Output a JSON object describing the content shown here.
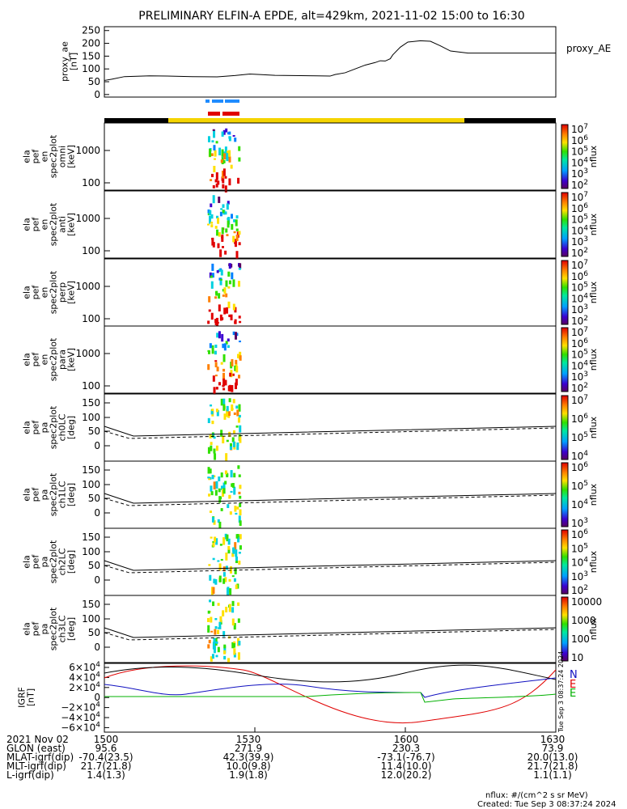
{
  "title": "PRELIMINARY ELFIN-A EPDE, alt=429km, 2021-11-02 15:00 to 16:30",
  "colors": {
    "black": "#000000",
    "yellow": "#f5d400",
    "blue": "#1f8cff",
    "red": "#e00000",
    "green": "#00b000",
    "navy": "#1010c0"
  },
  "proxy_ae": {
    "ylabel": "proxy_ae\n[nT]",
    "legend": "proxy_AE",
    "yticks": [
      "250",
      "200",
      "150",
      "100",
      "50",
      "0"
    ],
    "ylim": [
      -10,
      265
    ],
    "series": [
      [
        0,
        55
      ],
      [
        3,
        60
      ],
      [
        8,
        70
      ],
      [
        18,
        73
      ],
      [
        25,
        72
      ],
      [
        35,
        70
      ],
      [
        45,
        69
      ],
      [
        52,
        74
      ],
      [
        58,
        80
      ],
      [
        62,
        78
      ],
      [
        68,
        75
      ],
      [
        75,
        74
      ],
      [
        85,
        73
      ],
      [
        90,
        72
      ],
      [
        92,
        78
      ],
      [
        96,
        85
      ],
      [
        100,
        100
      ],
      [
        104,
        115
      ],
      [
        108,
        125
      ],
      [
        110,
        132
      ],
      [
        112,
        131
      ],
      [
        114,
        140
      ],
      [
        115,
        155
      ],
      [
        118,
        185
      ],
      [
        121,
        205
      ],
      [
        126,
        210
      ],
      [
        130,
        208
      ],
      [
        134,
        190
      ],
      [
        138,
        170
      ],
      [
        145,
        162
      ],
      [
        180,
        162
      ]
    ]
  },
  "science_bars": {
    "blue_label": "",
    "red_label": ""
  },
  "panels": [
    {
      "ylabel": "ela\npef\nen\nspec2plot\nomni\n[keV]",
      "yticks": [
        "1000",
        "100"
      ],
      "cbar_label": "nflux",
      "cbar_ticks": [
        "10^7",
        "10^6",
        "10^5",
        "10^4",
        "10^3",
        "10^2"
      ]
    },
    {
      "ylabel": "ela\npef\nen\nspec2plot\nanti\n[keV]",
      "yticks": [
        "1000",
        "100"
      ],
      "cbar_label": "nflux",
      "cbar_ticks": [
        "10^7",
        "10^6",
        "10^5",
        "10^4",
        "10^3",
        "10^2"
      ]
    },
    {
      "ylabel": "ela\npef\nen\nspec2plot\nperp\n[keV]",
      "yticks": [
        "1000",
        "100"
      ],
      "cbar_label": "nflux",
      "cbar_ticks": [
        "10^7",
        "10^6",
        "10^5",
        "10^4",
        "10^3",
        "10^2"
      ]
    },
    {
      "ylabel": "ela\npef\nen\nspec2plot\npara\n[keV]",
      "yticks": [
        "1000",
        "100"
      ],
      "cbar_label": "nflux",
      "cbar_ticks": [
        "10^7",
        "10^6",
        "10^5",
        "10^4",
        "10^3",
        "10^2"
      ]
    },
    {
      "ylabel": "ela\npef\npa\nspec2plot\nch0LC\n[deg]",
      "yticks": [
        "150",
        "100",
        "50",
        "0"
      ],
      "cbar_label": "nflux",
      "cbar_ticks": [
        "10^7",
        "10^6",
        "10^5",
        "10^4"
      ]
    },
    {
      "ylabel": "ela\npef\npa\nspec2plot\nch1LC\n[deg]",
      "yticks": [
        "150",
        "100",
        "50",
        "0"
      ],
      "cbar_label": "nflux",
      "cbar_ticks": [
        "10^6",
        "10^5",
        "10^4",
        "10^3"
      ]
    },
    {
      "ylabel": "ela\npef\npa\nspec2plot\nch2LC\n[deg]",
      "yticks": [
        "150",
        "100",
        "50",
        "0"
      ],
      "cbar_label": "nflux",
      "cbar_ticks": [
        "10^6",
        "10^5",
        "10^4",
        "10^3",
        "10^2"
      ]
    },
    {
      "ylabel": "ela\npef\npa\nspec2plot\nch3LC\n[deg]",
      "yticks": [
        "150",
        "100",
        "50",
        "0"
      ],
      "cbar_label": "nflux",
      "cbar_ticks": [
        "10000",
        "1000",
        "100",
        "10"
      ]
    }
  ],
  "igrf": {
    "ylabel": "IGRF\n[nT]",
    "yticks": [
      "6×10^4",
      "4×10^4",
      "2×10^4",
      "0",
      "−2×10^4",
      "−4×10^4",
      "−6×10^4"
    ],
    "legend": [
      "N",
      "E",
      "E"
    ],
    "side_stamp": "Tue Sep  3 08:37:24 2024"
  },
  "xaxis": {
    "tick_labels": [
      "1500",
      "1530",
      "1600",
      "1630"
    ],
    "rows": [
      {
        "label": "2021 Nov 02",
        "values": [
          "1500",
          "1530",
          "1600",
          "1630"
        ]
      },
      {
        "label": "GLON (east)",
        "values": [
          "95.6",
          "271.9",
          "230.3",
          "73.9"
        ]
      },
      {
        "label": "MLAT-igrf(dip)",
        "values": "-70.4(23.5)|42.3(39.9)|-73.1(-76.7)|20.0(13.0)"
      },
      {
        "label": "MLT-igrf(dip)",
        "values": "21.7(21.8)|10.0(9.8)|11.4(10.0)|21.7(21.8)"
      },
      {
        "label": "L-igrf(dip)",
        "values": "1.4(1.3)|1.9(1.8)|12.0(20.2)|1.1(1.1)"
      }
    ]
  },
  "footer": {
    "units": "nflux: #/(cm^2 s sr MeV)",
    "created": "Created: Tue Sep  3 08:37:24 2024"
  }
}
